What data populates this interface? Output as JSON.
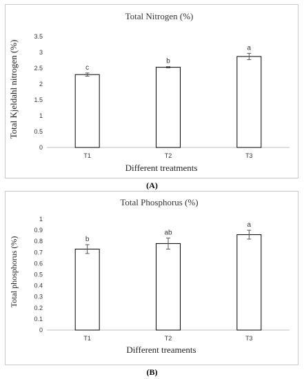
{
  "chart_data": [
    {
      "type": "bar",
      "title": "Total Nitrogen (%)",
      "xlabel": "Different treatments",
      "ylabel": "Total Kjeldahl nitrogen (%)",
      "categories": [
        "T1",
        "T2",
        "T3"
      ],
      "values": [
        2.3,
        2.53,
        2.87
      ],
      "errors": [
        0.05,
        0.02,
        0.1
      ],
      "significance": [
        "c",
        "b",
        "a"
      ],
      "ylim": [
        0,
        3.5
      ],
      "yticks": [
        "0",
        "0.5",
        "1",
        "1.5",
        "2",
        "2.5",
        "3",
        "3.5"
      ],
      "grid": false,
      "caption": "(A)"
    },
    {
      "type": "bar",
      "title": "Total Phosphorus (%)",
      "xlabel": "Different treaments",
      "ylabel": "Total phosphorus (%)",
      "categories": [
        "T1",
        "T2",
        "T3"
      ],
      "values": [
        0.73,
        0.78,
        0.86
      ],
      "errors": [
        0.04,
        0.05,
        0.04
      ],
      "significance": [
        "b",
        "ab",
        "a"
      ],
      "ylim": [
        0,
        1
      ],
      "yticks": [
        "0",
        "0.1",
        "0.2",
        "0.3",
        "0.4",
        "0.5",
        "0.6",
        "0.7",
        "0.8",
        "0.9",
        "1"
      ],
      "grid": false,
      "caption": "(B)"
    }
  ],
  "colors": {
    "bar_fill": "#ffffff",
    "bar_stroke": "#000000",
    "axis": "#bfbfbf",
    "text": "#333333"
  }
}
